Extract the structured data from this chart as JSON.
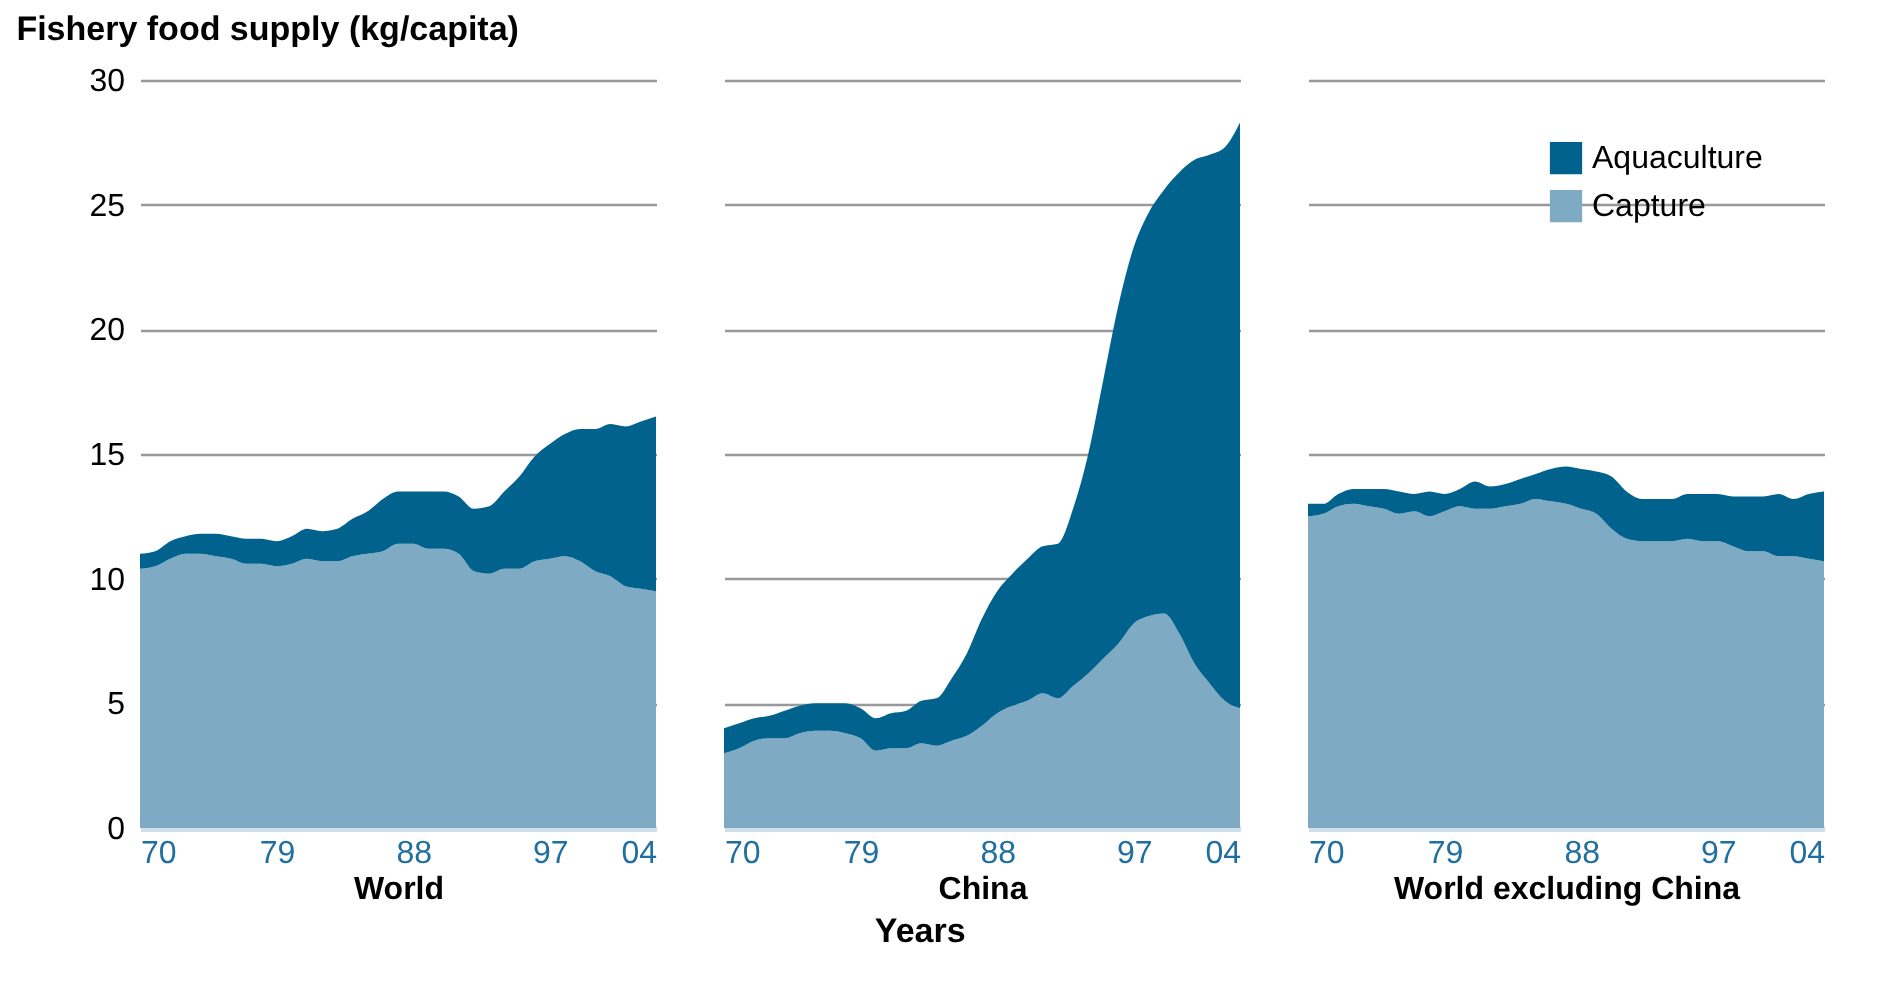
{
  "chart_data": [
    {
      "type": "area",
      "stacked": true,
      "title": "Fishery food supply (kg/capita)",
      "xlabel": "World",
      "grid": "y",
      "x": [
        1970,
        1971,
        1972,
        1973,
        1974,
        1975,
        1976,
        1977,
        1978,
        1979,
        1980,
        1981,
        1982,
        1983,
        1984,
        1985,
        1986,
        1987,
        1988,
        1989,
        1990,
        1991,
        1992,
        1993,
        1994,
        1995,
        1996,
        1997,
        1998,
        1999,
        2000,
        2001,
        2002,
        2003,
        2004
      ],
      "xlim": [
        1970,
        2004
      ],
      "xticks": [
        {
          "value": 1970,
          "label": "70"
        },
        {
          "value": 1979,
          "label": "79"
        },
        {
          "value": 1988,
          "label": "88"
        },
        {
          "value": 1997,
          "label": "97"
        },
        {
          "value": 2004,
          "label": "04"
        }
      ],
      "ylim": [
        0,
        30
      ],
      "yticks": [
        0,
        5,
        10,
        15,
        20,
        25,
        30
      ],
      "series": [
        {
          "color": "#7eaac4",
          "values": [
            10.4,
            10.5,
            10.8,
            11.0,
            11.0,
            10.9,
            10.8,
            10.6,
            10.6,
            10.5,
            10.6,
            10.8,
            10.7,
            10.7,
            10.9,
            11.0,
            11.1,
            11.4,
            11.4,
            11.2,
            11.2,
            11.0,
            10.3,
            10.2,
            10.4,
            10.4,
            10.7,
            10.8,
            10.9,
            10.7,
            10.3,
            10.1,
            9.7,
            9.6,
            9.5
          ]
        },
        {
          "color": "#02628e",
          "values": [
            0.6,
            0.6,
            0.7,
            0.7,
            0.8,
            0.9,
            0.9,
            1.0,
            1.0,
            1.0,
            1.1,
            1.2,
            1.2,
            1.3,
            1.5,
            1.7,
            2.1,
            2.1,
            2.1,
            2.3,
            2.3,
            2.3,
            2.5,
            2.7,
            3.1,
            3.7,
            4.2,
            4.6,
            4.9,
            5.3,
            5.7,
            6.1,
            6.4,
            6.7,
            7.0
          ]
        }
      ]
    },
    {
      "type": "area",
      "stacked": true,
      "xlabel": "China",
      "grid": "y",
      "tick_labels": "x",
      "annotations": [
        "Years"
      ],
      "x": [
        1970,
        1971,
        1972,
        1973,
        1974,
        1975,
        1976,
        1977,
        1978,
        1979,
        1980,
        1981,
        1982,
        1983,
        1984,
        1985,
        1986,
        1987,
        1988,
        1989,
        1990,
        1991,
        1992,
        1993,
        1994,
        1995,
        1996,
        1997,
        1998,
        1999,
        2000,
        2001,
        2002,
        2003,
        2004
      ],
      "xlim": [
        1970,
        2004
      ],
      "xticks": [
        {
          "value": 1970,
          "label": "70"
        },
        {
          "value": 1979,
          "label": "79"
        },
        {
          "value": 1988,
          "label": "88"
        },
        {
          "value": 1997,
          "label": "97"
        },
        {
          "value": 2004,
          "label": "04"
        }
      ],
      "ylim": [
        0,
        30
      ],
      "yticks": [
        0,
        5,
        10,
        15,
        20,
        25,
        30
      ],
      "series": [
        {
          "color": "#7eaac4",
          "values": [
            3.0,
            3.2,
            3.5,
            3.6,
            3.6,
            3.8,
            3.9,
            3.9,
            3.8,
            3.6,
            3.1,
            3.2,
            3.2,
            3.4,
            3.3,
            3.5,
            3.7,
            4.1,
            4.6,
            4.9,
            5.1,
            5.4,
            5.2,
            5.7,
            6.2,
            6.8,
            7.4,
            8.2,
            8.5,
            8.6,
            7.8,
            6.6,
            5.8,
            5.1,
            4.8
          ]
        },
        {
          "color": "#02628e",
          "values": [
            1.0,
            1.0,
            0.9,
            0.9,
            1.1,
            1.1,
            1.1,
            1.1,
            1.2,
            1.2,
            1.3,
            1.4,
            1.5,
            1.7,
            1.9,
            2.5,
            3.3,
            4.3,
            4.9,
            5.3,
            5.7,
            5.9,
            6.2,
            7.1,
            8.8,
            11.2,
            13.6,
            15.1,
            16.2,
            17.0,
            18.5,
            20.2,
            21.2,
            22.2,
            23.5
          ]
        }
      ]
    },
    {
      "type": "area",
      "stacked": true,
      "xlabel": "World excluding China",
      "grid": "y",
      "legend": "top right",
      "tick_labels": "x",
      "x": [
        1970,
        1971,
        1972,
        1973,
        1974,
        1975,
        1976,
        1977,
        1978,
        1979,
        1980,
        1981,
        1982,
        1983,
        1984,
        1985,
        1986,
        1987,
        1988,
        1989,
        1990,
        1991,
        1992,
        1993,
        1994,
        1995,
        1996,
        1997,
        1998,
        1999,
        2000,
        2001,
        2002,
        2003,
        2004
      ],
      "xlim": [
        1970,
        2004
      ],
      "xticks": [
        {
          "value": 1970,
          "label": "70"
        },
        {
          "value": 1979,
          "label": "79"
        },
        {
          "value": 1988,
          "label": "88"
        },
        {
          "value": 1997,
          "label": "97"
        },
        {
          "value": 2004,
          "label": "04"
        }
      ],
      "ylim": [
        0,
        30
      ],
      "yticks": [
        0,
        5,
        10,
        15,
        20,
        25,
        30
      ],
      "series": [
        {
          "name": "Capture",
          "color": "#7eaac4",
          "values": [
            12.5,
            12.6,
            12.9,
            13.0,
            12.9,
            12.8,
            12.6,
            12.7,
            12.5,
            12.7,
            12.9,
            12.8,
            12.8,
            12.9,
            13.0,
            13.2,
            13.1,
            13.0,
            12.8,
            12.6,
            12.0,
            11.6,
            11.5,
            11.5,
            11.5,
            11.6,
            11.5,
            11.5,
            11.3,
            11.1,
            11.1,
            10.9,
            10.9,
            10.8,
            10.7
          ]
        },
        {
          "name": "Aquaculture",
          "color": "#02628e",
          "values": [
            0.5,
            0.4,
            0.5,
            0.6,
            0.7,
            0.8,
            0.9,
            0.7,
            1.0,
            0.7,
            0.7,
            1.1,
            0.9,
            0.9,
            1.0,
            1.0,
            1.3,
            1.5,
            1.6,
            1.7,
            2.1,
            1.9,
            1.7,
            1.7,
            1.7,
            1.8,
            1.9,
            1.9,
            2.0,
            2.2,
            2.2,
            2.5,
            2.3,
            2.6,
            2.8
          ]
        }
      ]
    }
  ]
}
